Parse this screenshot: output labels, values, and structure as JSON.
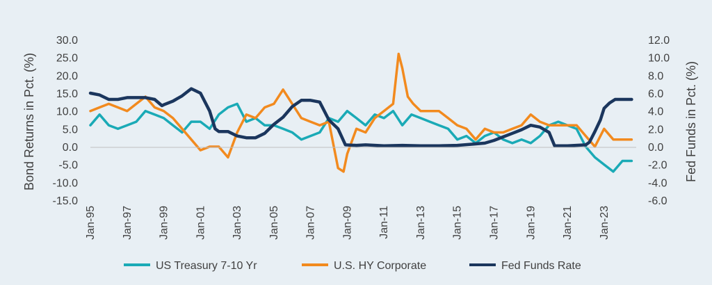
{
  "chart_data": {
    "type": "line",
    "ylabel": "Bond Returns in Pct. (%)",
    "y2label": "Fed Funds in Pct. (%)",
    "ylim": [
      -15,
      30
    ],
    "y2lim": [
      -6,
      12
    ],
    "yticks": [
      "30.0",
      "25.0",
      "20.0",
      "15.0",
      "10.0",
      "5.0",
      "0.0",
      "-5.0",
      "-10.0",
      "-15.0"
    ],
    "y2ticks": [
      "12.0",
      "10.0",
      "8.0",
      "6.0",
      "4.0",
      "2.0",
      "0.0",
      "-2.0",
      "-4.0",
      "-6.0"
    ],
    "xlim": [
      1995.0,
      2024.75
    ],
    "xticks": [
      "Jan-95",
      "Jan-97",
      "Jan-99",
      "Jan-01",
      "Jan-03",
      "Jan-05",
      "Jan-07",
      "Jan-09",
      "Jan-11",
      "Jan-13",
      "Jan-15",
      "Jan-17",
      "Jan-19",
      "Jan-21",
      "Jan-23"
    ],
    "grid": false,
    "legend": "bottom",
    "series": [
      {
        "name": "US Treasury 7-10 Yr",
        "color": "#1aaab6",
        "axis": "left",
        "x": [
          1995.0,
          1995.5,
          1996.0,
          1996.5,
          1997.0,
          1997.5,
          1998.0,
          1998.5,
          1999.0,
          1999.5,
          2000.0,
          2000.5,
          2001.0,
          2001.5,
          2002.0,
          2002.5,
          2003.0,
          2003.5,
          2004.0,
          2004.5,
          2005.0,
          2005.5,
          2006.0,
          2006.5,
          2007.0,
          2007.5,
          2008.0,
          2008.5,
          2009.0,
          2009.5,
          2010.0,
          2010.5,
          2011.0,
          2011.5,
          2012.0,
          2012.5,
          2013.0,
          2013.5,
          2014.0,
          2014.5,
          2015.0,
          2015.5,
          2016.0,
          2016.5,
          2017.0,
          2017.5,
          2018.0,
          2018.5,
          2019.0,
          2019.5,
          2020.0,
          2020.5,
          2021.0,
          2021.5,
          2022.0,
          2022.5,
          2023.0,
          2023.5,
          2024.0,
          2024.5
        ],
        "values": [
          6,
          9,
          6,
          5,
          6,
          7,
          10,
          9,
          8,
          6,
          4,
          7,
          7,
          5,
          9,
          11,
          12,
          7,
          8,
          6,
          6,
          5,
          4,
          2,
          3,
          4,
          8,
          7,
          10,
          8,
          6,
          9,
          8,
          10,
          6,
          9,
          8,
          7,
          6,
          5,
          2,
          3,
          1,
          3,
          4,
          2,
          1,
          2,
          1,
          3,
          6,
          7,
          6,
          5,
          0,
          -3,
          -5,
          -7,
          -4,
          -4
        ]
      },
      {
        "name": "U.S. HY Corporate",
        "color": "#f28a1e",
        "axis": "left",
        "x": [
          1995.0,
          1995.5,
          1996.0,
          1996.5,
          1997.0,
          1997.5,
          1998.0,
          1998.5,
          1999.0,
          1999.5,
          2000.0,
          2000.5,
          2001.0,
          2001.5,
          2002.0,
          2002.5,
          2003.0,
          2003.5,
          2004.0,
          2004.5,
          2005.0,
          2005.5,
          2006.0,
          2006.5,
          2007.0,
          2007.5,
          2008.0,
          2008.5,
          2008.8,
          2009.0,
          2009.5,
          2010.0,
          2010.5,
          2011.0,
          2011.5,
          2011.8,
          2012.0,
          2012.3,
          2012.6,
          2013.0,
          2013.5,
          2014.0,
          2014.5,
          2015.0,
          2015.5,
          2016.0,
          2016.5,
          2017.0,
          2017.5,
          2018.0,
          2018.5,
          2019.0,
          2019.5,
          2020.0,
          2020.5,
          2021.0,
          2021.5,
          2022.0,
          2022.5,
          2023.0,
          2023.5,
          2024.0,
          2024.5
        ],
        "values": [
          10,
          11,
          12,
          11,
          10,
          12,
          14,
          11,
          10,
          8,
          5,
          2,
          -1,
          0,
          0,
          -3,
          4,
          9,
          8,
          11,
          12,
          16,
          12,
          8,
          7,
          6,
          7,
          -6,
          -7,
          -2,
          5,
          4,
          8,
          10,
          12,
          26,
          22,
          14,
          12,
          10,
          10,
          10,
          8,
          6,
          5,
          2,
          5,
          4,
          4,
          5,
          6,
          9,
          7,
          6,
          6,
          6,
          6,
          3,
          0,
          5,
          2,
          2,
          2
        ]
      },
      {
        "name": "Fed Funds Rate",
        "color": "#1b365d",
        "axis": "right",
        "x": [
          1995.0,
          1995.5,
          1996.0,
          1996.5,
          1997.0,
          1997.5,
          1998.0,
          1998.5,
          1998.9,
          1999.0,
          1999.5,
          2000.0,
          2000.5,
          2001.0,
          2001.5,
          2001.8,
          2002.0,
          2002.5,
          2003.0,
          2003.5,
          2004.0,
          2004.5,
          2005.0,
          2005.5,
          2006.0,
          2006.5,
          2007.0,
          2007.5,
          2008.0,
          2008.5,
          2008.9,
          2009.5,
          2010.0,
          2011.0,
          2012.0,
          2013.0,
          2014.0,
          2015.0,
          2015.9,
          2016.5,
          2017.0,
          2017.5,
          2018.0,
          2018.5,
          2019.0,
          2019.5,
          2020.0,
          2020.3,
          2021.0,
          2022.0,
          2022.2,
          2022.5,
          2022.8,
          2023.0,
          2023.3,
          2023.6,
          2024.0,
          2024.5
        ],
        "values": [
          6,
          5.8,
          5.3,
          5.3,
          5.5,
          5.5,
          5.5,
          5.3,
          4.6,
          4.7,
          5.1,
          5.7,
          6.5,
          6,
          4,
          2,
          1.7,
          1.7,
          1.2,
          1,
          1,
          1.5,
          2.5,
          3.3,
          4.5,
          5.2,
          5.2,
          5,
          3,
          2,
          0.2,
          0.15,
          0.2,
          0.1,
          0.15,
          0.1,
          0.1,
          0.15,
          0.3,
          0.4,
          0.7,
          1.1,
          1.5,
          1.9,
          2.4,
          2.2,
          1.6,
          0.1,
          0.1,
          0.2,
          0.5,
          1.7,
          3,
          4.3,
          4.9,
          5.3,
          5.3,
          5.3
        ]
      }
    ]
  }
}
